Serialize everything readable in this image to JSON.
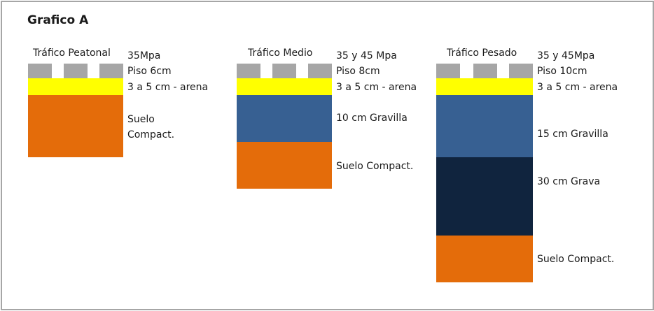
{
  "title": "Grafico A",
  "colors": {
    "tile": "#a6a6a6",
    "sand": "#ffff00",
    "soil": "#e46c0a",
    "gravel_fine": "#376092",
    "gravel": "#10243e"
  },
  "columns": [
    {
      "title": "Tráfico Peatonal",
      "strength": "35Mpa",
      "pavement": "Piso 6cm",
      "sand": "3 a 5 cm - arena",
      "soil": "Suelo Compact."
    },
    {
      "title": "Tráfico Medio",
      "strength": "35 y 45 Mpa",
      "pavement": "Piso 8cm",
      "sand": "3 a 5 cm - arena",
      "gravel_fine": "10 cm Gravilla",
      "soil": "Suelo Compact."
    },
    {
      "title": "Tráfico Pesado",
      "strength": "35 y 45Mpa",
      "pavement": "Piso 10cm",
      "sand": "3 a 5 cm - arena",
      "gravel_fine": "15 cm Gravilla",
      "gravel": "30 cm Grava",
      "soil": "Suelo Compact."
    }
  ]
}
